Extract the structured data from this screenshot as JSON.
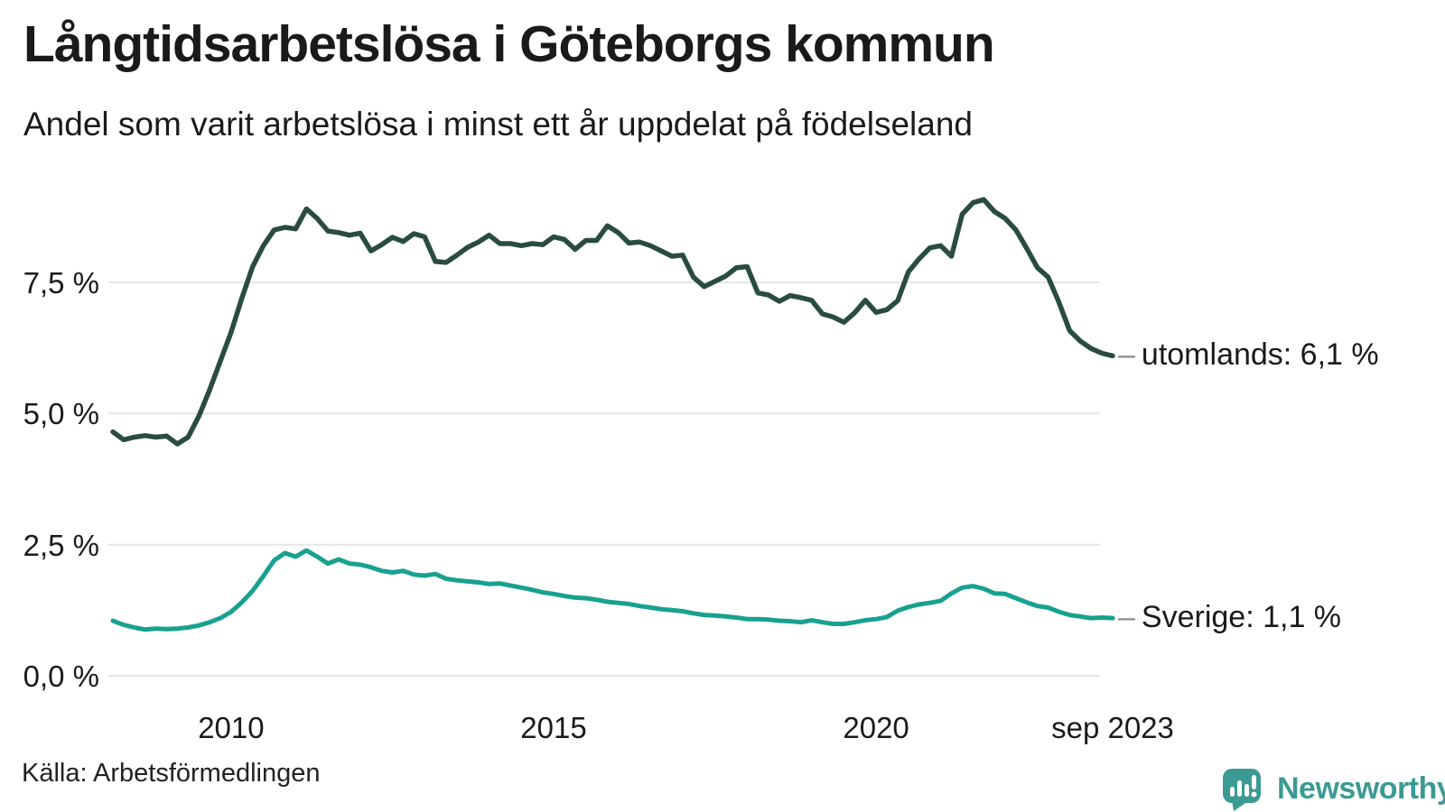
{
  "header": {
    "title": "Långtidsarbetslösa i Göteborgs kommun",
    "subtitle": "Andel som varit arbetslösa i minst ett år uppdelat på födelseland"
  },
  "footer": {
    "source": "Källa: Arbetsförmedlingen",
    "brand": "Newsworthy"
  },
  "colors": {
    "utomlands_line": "#2a4b42",
    "sverige_line": "#18a18f",
    "gridline": "#e5e5e8",
    "label_dash": "#8a8a8a",
    "text": "#1a1a1a",
    "brand_teal": "#3b9a93"
  },
  "chart_data": {
    "type": "line",
    "title": "Långtidsarbetslösa i Göteborgs kommun",
    "subtitle": "Andel som varit arbetslösa i minst ett år uppdelat på födelseland",
    "unit": "%",
    "grid": true,
    "legend_position": "end-of-line-labels",
    "x_axis": {
      "range": [
        2008.167,
        2023.667
      ],
      "ticks": [
        {
          "t": 2010,
          "label": "2010"
        },
        {
          "t": 2015,
          "label": "2015"
        },
        {
          "t": 2020,
          "label": "2020"
        },
        {
          "t": 2023.667,
          "label": "sep 2023"
        }
      ]
    },
    "y_axis": {
      "range": [
        0,
        9.6
      ],
      "ticks": [
        {
          "v": 0,
          "label": "0,0 %"
        },
        {
          "v": 2.5,
          "label": "2,5 %"
        },
        {
          "v": 5,
          "label": "5,0 %"
        },
        {
          "v": 7.5,
          "label": "7,5 %"
        }
      ]
    },
    "series": [
      {
        "name": "utomlands",
        "end_label": "utomlands: 6,1 %",
        "current_value": "6,1 %",
        "color": "#2a4b42",
        "stroke_width": 5.5,
        "start": 2008.167,
        "step_years": 0.166667,
        "values": [
          4.65,
          4.5,
          4.55,
          4.58,
          4.55,
          4.57,
          4.42,
          4.55,
          4.95,
          5.45,
          6.0,
          6.55,
          7.2,
          7.8,
          8.2,
          8.5,
          8.55,
          8.52,
          8.9,
          8.72,
          8.48,
          8.45,
          8.4,
          8.44,
          8.1,
          8.22,
          8.36,
          8.28,
          8.43,
          8.37,
          7.9,
          7.88,
          8.02,
          8.17,
          8.27,
          8.4,
          8.24,
          8.24,
          8.2,
          8.24,
          8.22,
          8.37,
          8.32,
          8.13,
          8.3,
          8.3,
          8.58,
          8.45,
          8.25,
          8.27,
          8.2,
          8.1,
          8.0,
          8.02,
          7.6,
          7.42,
          7.52,
          7.62,
          7.78,
          7.8,
          7.3,
          7.26,
          7.14,
          7.25,
          7.21,
          7.16,
          6.9,
          6.84,
          6.74,
          6.92,
          7.16,
          6.93,
          6.98,
          7.15,
          7.7,
          7.95,
          8.16,
          8.2,
          8.0,
          8.8,
          9.02,
          9.08,
          8.85,
          8.72,
          8.5,
          8.15,
          7.78,
          7.6,
          7.12,
          6.58,
          6.38,
          6.24,
          6.15,
          6.1
        ]
      },
      {
        "name": "Sverige",
        "end_label": "Sverige: 1,1 %",
        "current_value": "1,1 %",
        "color": "#18a18f",
        "stroke_width": 5,
        "start": 2008.167,
        "step_years": 0.166667,
        "values": [
          1.05,
          0.97,
          0.92,
          0.88,
          0.9,
          0.89,
          0.9,
          0.92,
          0.96,
          1.02,
          1.1,
          1.22,
          1.4,
          1.62,
          1.9,
          2.2,
          2.34,
          2.27,
          2.39,
          2.27,
          2.14,
          2.22,
          2.14,
          2.12,
          2.07,
          2.0,
          1.97,
          2.0,
          1.93,
          1.91,
          1.94,
          1.85,
          1.82,
          1.8,
          1.78,
          1.75,
          1.76,
          1.72,
          1.68,
          1.64,
          1.59,
          1.56,
          1.52,
          1.49,
          1.48,
          1.45,
          1.41,
          1.39,
          1.37,
          1.33,
          1.3,
          1.27,
          1.25,
          1.23,
          1.19,
          1.16,
          1.15,
          1.13,
          1.11,
          1.08,
          1.08,
          1.07,
          1.05,
          1.04,
          1.02,
          1.06,
          1.02,
          0.99,
          0.99,
          1.02,
          1.06,
          1.08,
          1.12,
          1.24,
          1.31,
          1.36,
          1.39,
          1.43,
          1.57,
          1.68,
          1.71,
          1.66,
          1.57,
          1.56,
          1.48,
          1.4,
          1.33,
          1.3,
          1.22,
          1.16,
          1.13,
          1.1,
          1.11,
          1.1
        ]
      }
    ]
  }
}
